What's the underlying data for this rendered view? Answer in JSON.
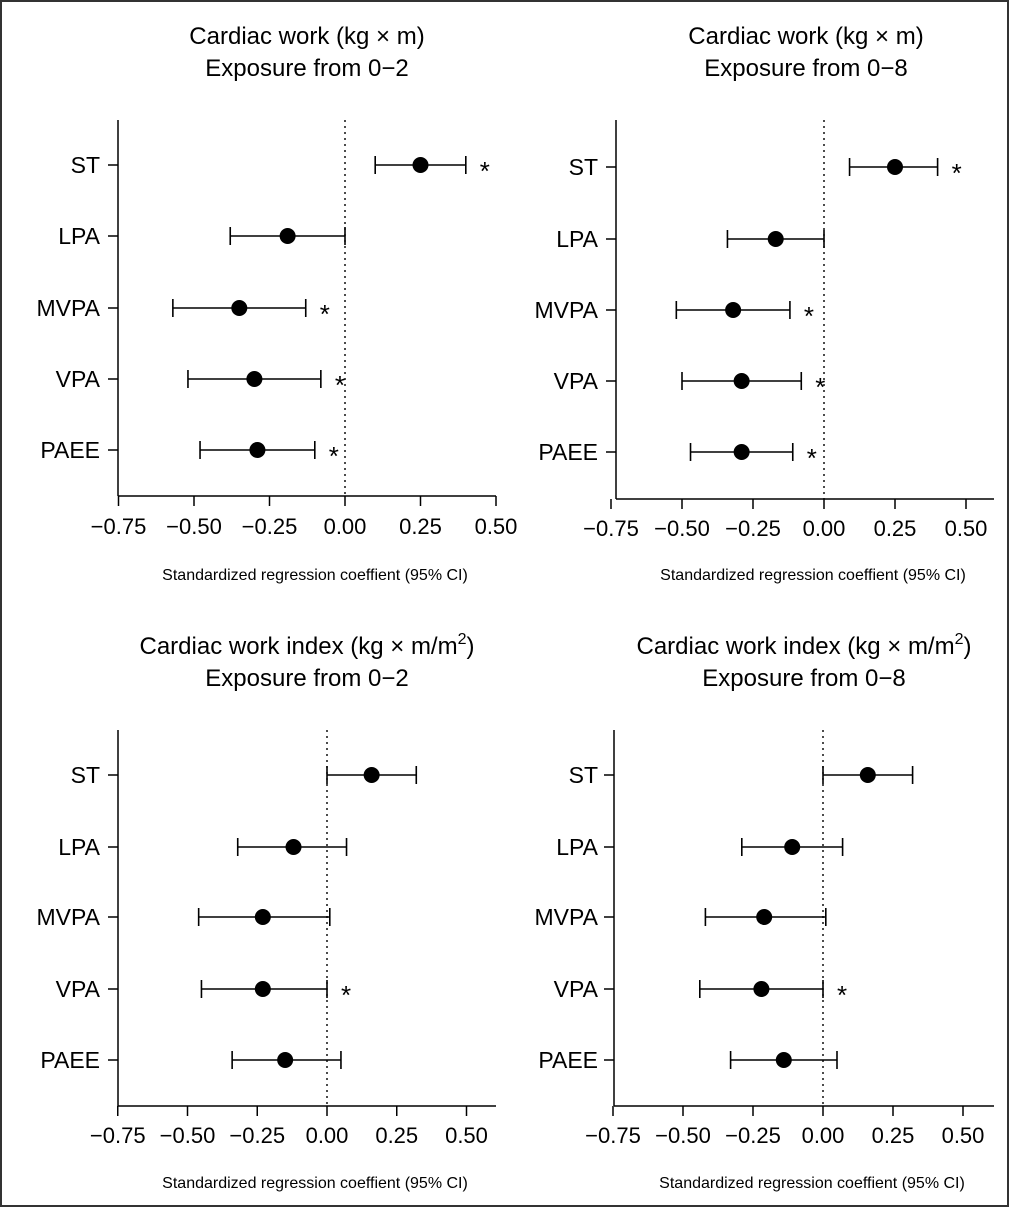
{
  "chart_data": [
    {
      "type": "forest",
      "title_line1": "Cardiac work (kg × m)",
      "title_line1_sup": "",
      "title_line1_tail": "",
      "title_line2": "Exposure from 0−2",
      "xlabel": "Standardized regression coeffient (95% CI)",
      "xlim": [
        -0.75,
        0.5
      ],
      "xticks": [
        "−0.75",
        "−0.50",
        "−0.25",
        "0.00",
        "0.25",
        "0.50"
      ],
      "xtick_values": [
        -0.75,
        -0.5,
        -0.25,
        0,
        0.25,
        0.5
      ],
      "reference_line": 0,
      "rows": [
        {
          "label": "ST",
          "estimate": 0.25,
          "ci_low": 0.1,
          "ci_high": 0.4,
          "significant": "*"
        },
        {
          "label": "LPA",
          "estimate": -0.19,
          "ci_low": -0.38,
          "ci_high": 0.0,
          "significant": ""
        },
        {
          "label": "MVPA",
          "estimate": -0.35,
          "ci_low": -0.57,
          "ci_high": -0.13,
          "significant": "*"
        },
        {
          "label": "VPA",
          "estimate": -0.3,
          "ci_low": -0.52,
          "ci_high": -0.08,
          "significant": "*"
        },
        {
          "label": "PAEE",
          "estimate": -0.29,
          "ci_low": -0.48,
          "ci_high": -0.1,
          "significant": "*"
        }
      ]
    },
    {
      "type": "forest",
      "title_line1": "Cardiac work (kg × m)",
      "title_line1_sup": "",
      "title_line1_tail": "",
      "title_line2": "Exposure from 0−8",
      "xlabel": "Standardized regression coeffient (95% CI)",
      "xlim": [
        -0.75,
        0.6
      ],
      "xticks": [
        "−0.75",
        "−0.50",
        "−0.25",
        "0.00",
        "0.25",
        "0.50"
      ],
      "xtick_values": [
        -0.75,
        -0.5,
        -0.25,
        0,
        0.25,
        0.5
      ],
      "reference_line": 0,
      "rows": [
        {
          "label": "ST",
          "estimate": 0.25,
          "ci_low": 0.09,
          "ci_high": 0.4,
          "significant": "*"
        },
        {
          "label": "LPA",
          "estimate": -0.17,
          "ci_low": -0.34,
          "ci_high": 0.0,
          "significant": ""
        },
        {
          "label": "MVPA",
          "estimate": -0.32,
          "ci_low": -0.52,
          "ci_high": -0.12,
          "significant": "*"
        },
        {
          "label": "VPA",
          "estimate": -0.29,
          "ci_low": -0.5,
          "ci_high": -0.08,
          "significant": "*"
        },
        {
          "label": "PAEE",
          "estimate": -0.29,
          "ci_low": -0.47,
          "ci_high": -0.11,
          "significant": "*"
        }
      ]
    },
    {
      "type": "forest",
      "title_line1": "Cardiac work index (kg × m/m",
      "title_line1_sup": "2",
      "title_line1_tail": ")",
      "title_line2": "Exposure from 0−2",
      "xlabel": "Standardized regression coeffient (95% CI)",
      "xlim": [
        -0.75,
        0.6
      ],
      "xticks": [
        "−0.75",
        "−0.50",
        "−0.25",
        "0.00",
        "0.25",
        "0.50"
      ],
      "xtick_values": [
        -0.75,
        -0.5,
        -0.25,
        0,
        0.25,
        0.5
      ],
      "reference_line": 0,
      "rows": [
        {
          "label": "ST",
          "estimate": 0.16,
          "ci_low": 0.0,
          "ci_high": 0.32,
          "significant": ""
        },
        {
          "label": "LPA",
          "estimate": -0.12,
          "ci_low": -0.32,
          "ci_high": 0.07,
          "significant": ""
        },
        {
          "label": "MVPA",
          "estimate": -0.23,
          "ci_low": -0.46,
          "ci_high": 0.01,
          "significant": ""
        },
        {
          "label": "VPA",
          "estimate": -0.23,
          "ci_low": -0.45,
          "ci_high": 0.0,
          "significant": "*"
        },
        {
          "label": "PAEE",
          "estimate": -0.15,
          "ci_low": -0.34,
          "ci_high": 0.05,
          "significant": ""
        }
      ]
    },
    {
      "type": "forest",
      "title_line1": "Cardiac work index (kg × m/m",
      "title_line1_sup": "2",
      "title_line1_tail": ")",
      "title_line2": "Exposure from 0−8",
      "xlabel": "Standardized regression coeffient (95% CI)",
      "xlim": [
        -0.75,
        0.6
      ],
      "xticks": [
        "−0.75",
        "−0.50",
        "−0.25",
        "0.00",
        "0.25",
        "0.50"
      ],
      "xtick_values": [
        -0.75,
        -0.5,
        -0.25,
        0,
        0.25,
        0.5
      ],
      "reference_line": 0,
      "rows": [
        {
          "label": "ST",
          "estimate": 0.16,
          "ci_low": 0.0,
          "ci_high": 0.32,
          "significant": ""
        },
        {
          "label": "LPA",
          "estimate": -0.11,
          "ci_low": -0.29,
          "ci_high": 0.07,
          "significant": ""
        },
        {
          "label": "MVPA",
          "estimate": -0.21,
          "ci_low": -0.42,
          "ci_high": 0.01,
          "significant": ""
        },
        {
          "label": "VPA",
          "estimate": -0.22,
          "ci_low": -0.44,
          "ci_high": 0.0,
          "significant": "*"
        },
        {
          "label": "PAEE",
          "estimate": -0.14,
          "ci_low": -0.33,
          "ci_high": 0.05,
          "significant": ""
        }
      ]
    }
  ]
}
